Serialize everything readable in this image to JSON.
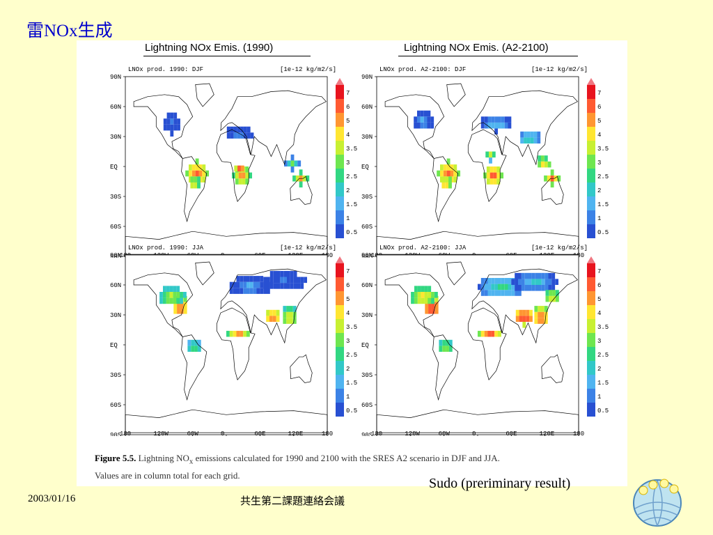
{
  "slide": {
    "title": "雷NOx生成",
    "footer_date": "2003/01/16",
    "footer_center": "共生第二課題連絡会議",
    "author_note": "Sudo  (preriminary result)"
  },
  "figure": {
    "left_heading": "Lightning NOx  Emis. (1990)",
    "right_heading": "Lightning NOx Emis. (A2-2100)",
    "panels": [
      {
        "label": "LNOx prod.    1990: DJF",
        "units": "[1e-12 kg/m2/s]"
      },
      {
        "label": "LNOx prod. A2-2100: DJF",
        "units": "[1e-12 kg/m2/s]"
      },
      {
        "label": "LNOx prod.    1990: JJA",
        "units": "[1e-12 kg/m2/s]"
      },
      {
        "label": "LNOx prod. A2-2100: JJA",
        "units": "[1e-12 kg/m2/s]"
      }
    ],
    "lat_ticks": [
      "90N",
      "60N",
      "30N",
      "EQ",
      "30S",
      "60S",
      "90S"
    ],
    "lon_ticks": [
      "180",
      "120W",
      "60W",
      "0",
      "60E",
      "120E",
      "180"
    ],
    "legend": {
      "levels": [
        "7",
        "6",
        "5",
        "4",
        "3.5",
        "3",
        "2.5",
        "2",
        "1.5",
        "1",
        "0.5"
      ],
      "colors": [
        "#e8141e",
        "#ff5a32",
        "#ff9632",
        "#ffe632",
        "#c8f032",
        "#6ee650",
        "#32d782",
        "#32c8c8",
        "#50b4f0",
        "#3c82e6",
        "#2850d2"
      ],
      "top_arrow_color": "#f07882"
    },
    "caption_label": "Figure 5.5.",
    "caption_text_1": " Lightning NO",
    "caption_sub": "x",
    "caption_text_2": " emissions calculated for 1990 and 2100 with the SRES A2 scenario in DJF and JJA.",
    "caption_line2": "Values are in column total for each grid."
  }
}
